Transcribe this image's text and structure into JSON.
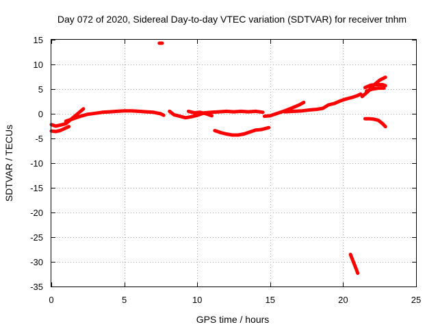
{
  "chart_data": {
    "type": "scatter",
    "title": "Day 072 of 2020, Sidereal Day-to-day VTEC variation (SDTVAR) for receiver tnhm",
    "xlabel": "GPS time / hours",
    "ylabel": "SDTVAR / TECUs",
    "xlim": [
      0,
      25
    ],
    "ylim": [
      -35,
      15
    ],
    "xticks": [
      0,
      5,
      10,
      15,
      20,
      25
    ],
    "yticks": [
      15,
      10,
      5,
      0,
      -5,
      -10,
      -15,
      -20,
      -25,
      -30,
      -35
    ],
    "grid": true,
    "legend": "none",
    "color": "#ff0000",
    "series": [
      {
        "name": "seg-1",
        "points": [
          [
            0,
            -3.5
          ],
          [
            0.3,
            -3.6
          ],
          [
            0.6,
            -3.4
          ],
          [
            0.9,
            -3.0
          ],
          [
            1.2,
            -2.6
          ]
        ]
      },
      {
        "name": "seg-2",
        "points": [
          [
            0,
            -2.2
          ],
          [
            0.3,
            -2.5
          ],
          [
            0.6,
            -2.3
          ],
          [
            1.0,
            -2.0
          ],
          [
            1.4,
            -1.0
          ],
          [
            1.8,
            0.0
          ],
          [
            2.2,
            1.0
          ]
        ]
      },
      {
        "name": "seg-3",
        "points": [
          [
            1.0,
            -1.5
          ],
          [
            1.5,
            -1.0
          ],
          [
            2.0,
            -0.5
          ],
          [
            2.5,
            -0.1
          ],
          [
            3.0,
            0.1
          ],
          [
            3.5,
            0.3
          ],
          [
            4.0,
            0.4
          ],
          [
            4.5,
            0.5
          ],
          [
            5.0,
            0.6
          ],
          [
            5.5,
            0.6
          ],
          [
            6.0,
            0.5
          ],
          [
            6.5,
            0.4
          ],
          [
            7.0,
            0.3
          ],
          [
            7.5,
            0.0
          ],
          [
            7.7,
            -0.3
          ]
        ]
      },
      {
        "name": "seg-4",
        "points": [
          [
            8.1,
            0.5
          ],
          [
            8.4,
            -0.2
          ],
          [
            8.8,
            -0.5
          ],
          [
            9.2,
            -0.8
          ],
          [
            9.6,
            -0.6
          ],
          [
            10.0,
            -0.3
          ],
          [
            10.5,
            0.2
          ],
          [
            11.0,
            0.3
          ],
          [
            11.5,
            0.4
          ],
          [
            12.0,
            0.5
          ],
          [
            12.5,
            0.4
          ],
          [
            13.0,
            0.5
          ],
          [
            13.5,
            0.4
          ],
          [
            14.0,
            0.5
          ],
          [
            14.5,
            0.3
          ]
        ]
      },
      {
        "name": "seg-5",
        "points": [
          [
            9.4,
            0.5
          ],
          [
            9.8,
            0.2
          ],
          [
            10.2,
            0.3
          ],
          [
            10.6,
            0.0
          ],
          [
            11.0,
            -0.4
          ]
        ]
      },
      {
        "name": "seg-6",
        "points": [
          [
            11.2,
            -3.4
          ],
          [
            11.6,
            -3.8
          ],
          [
            12.0,
            -4.1
          ],
          [
            12.4,
            -4.3
          ],
          [
            12.8,
            -4.3
          ],
          [
            13.2,
            -4.1
          ],
          [
            13.6,
            -3.7
          ],
          [
            14.0,
            -3.3
          ],
          [
            14.4,
            -3.2
          ],
          [
            14.9,
            -2.8
          ]
        ]
      },
      {
        "name": "seg-7",
        "points": [
          [
            14.6,
            -0.5
          ],
          [
            15.0,
            -0.4
          ],
          [
            15.5,
            0.1
          ],
          [
            16.0,
            0.6
          ],
          [
            16.5,
            1.2
          ],
          [
            17.0,
            1.8
          ],
          [
            17.3,
            2.3
          ]
        ]
      },
      {
        "name": "seg-8",
        "points": [
          [
            16.0,
            0.4
          ],
          [
            16.6,
            0.5
          ],
          [
            17.2,
            0.6
          ],
          [
            17.8,
            0.8
          ],
          [
            18.2,
            0.9
          ],
          [
            18.6,
            1.1
          ],
          [
            19.0,
            1.8
          ],
          [
            19.4,
            2.1
          ],
          [
            19.8,
            2.6
          ],
          [
            20.2,
            3.0
          ],
          [
            20.6,
            3.3
          ],
          [
            21.0,
            3.7
          ],
          [
            21.2,
            4.0
          ]
        ]
      },
      {
        "name": "seg-9",
        "points": [
          [
            21.3,
            3.5
          ],
          [
            21.7,
            4.5
          ],
          [
            22.1,
            5.8
          ],
          [
            22.5,
            6.8
          ],
          [
            22.9,
            7.4
          ]
        ]
      },
      {
        "name": "seg-10",
        "points": [
          [
            21.5,
            5.3
          ],
          [
            21.9,
            5.8
          ],
          [
            22.3,
            5.9
          ],
          [
            22.7,
            5.9
          ],
          [
            22.9,
            5.7
          ]
        ]
      },
      {
        "name": "seg-11",
        "points": [
          [
            21.6,
            4.6
          ],
          [
            22.0,
            5.0
          ],
          [
            22.4,
            5.2
          ],
          [
            22.8,
            5.2
          ]
        ]
      },
      {
        "name": "seg-12",
        "points": [
          [
            21.5,
            -1.0
          ],
          [
            21.8,
            -1.0
          ],
          [
            22.1,
            -1.1
          ],
          [
            22.4,
            -1.3
          ],
          [
            22.7,
            -2.0
          ],
          [
            22.9,
            -2.6
          ]
        ]
      },
      {
        "name": "seg-13",
        "points": [
          [
            20.5,
            -28.5
          ],
          [
            20.7,
            -30.0
          ],
          [
            20.9,
            -31.5
          ],
          [
            21.0,
            -32.3
          ]
        ]
      },
      {
        "name": "seg-14",
        "points": [
          [
            7.4,
            14.3
          ],
          [
            7.6,
            14.3
          ]
        ]
      }
    ]
  }
}
